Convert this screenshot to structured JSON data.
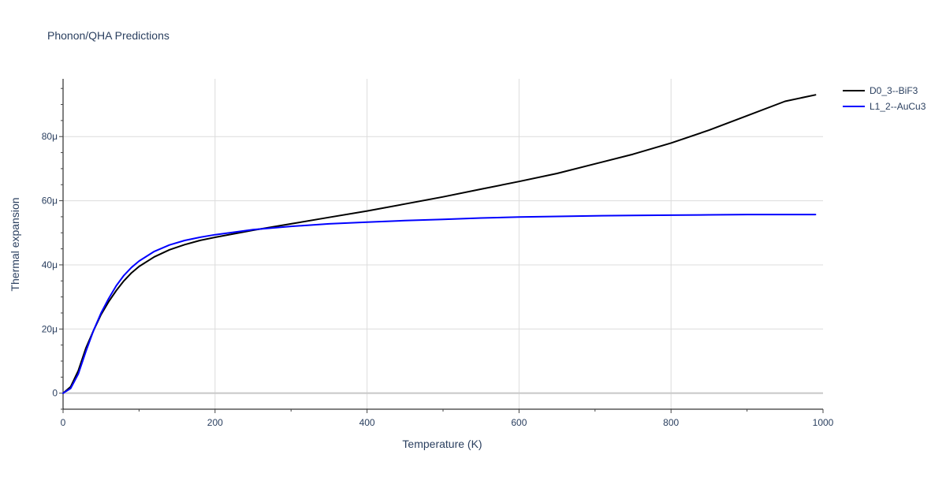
{
  "chart_data": {
    "type": "line",
    "title": "Phonon/QHA Predictions",
    "xlabel": "Temperature (K)",
    "ylabel": "Thermal expansion",
    "xlim": [
      0,
      1000
    ],
    "ylim": [
      -5,
      98
    ],
    "x_ticks": [
      0,
      200,
      400,
      600,
      800,
      1000
    ],
    "x_tick_labels": [
      "0",
      "200",
      "400",
      "600",
      "800",
      "1000"
    ],
    "y_ticks": [
      0,
      20,
      40,
      60,
      80
    ],
    "y_tick_labels": [
      "0",
      "20μ",
      "40μ",
      "60μ",
      "80μ"
    ],
    "grid": true,
    "legend_position": "top-right",
    "series": [
      {
        "name": "D0_3--BiF3",
        "color": "#000000",
        "x": [
          0,
          10,
          20,
          30,
          40,
          50,
          60,
          70,
          80,
          90,
          100,
          120,
          140,
          160,
          180,
          200,
          250,
          300,
          350,
          400,
          450,
          500,
          550,
          600,
          650,
          700,
          750,
          800,
          850,
          900,
          950,
          990
        ],
        "y": [
          0,
          2,
          7,
          14,
          19.5,
          24.5,
          28.5,
          32,
          35,
          37.5,
          39.5,
          42.5,
          44.7,
          46.3,
          47.6,
          48.6,
          50.8,
          52.8,
          54.8,
          56.8,
          59,
          61.2,
          63.6,
          66,
          68.5,
          71.5,
          74.5,
          78,
          82,
          86.5,
          91,
          93
        ]
      },
      {
        "name": "L1_2--AuCu3",
        "color": "#0000ff",
        "x": [
          0,
          10,
          20,
          30,
          40,
          50,
          60,
          70,
          80,
          90,
          100,
          120,
          140,
          160,
          180,
          200,
          250,
          300,
          350,
          400,
          450,
          500,
          550,
          600,
          650,
          700,
          750,
          800,
          850,
          900,
          950,
          990
        ],
        "y": [
          0,
          1.5,
          6,
          13,
          19.5,
          25,
          29.5,
          33.5,
          36.7,
          39.2,
          41.2,
          44.2,
          46.2,
          47.6,
          48.6,
          49.4,
          51,
          52,
          52.8,
          53.3,
          53.8,
          54.2,
          54.6,
          54.9,
          55.1,
          55.3,
          55.4,
          55.5,
          55.6,
          55.7,
          55.7,
          55.7
        ]
      }
    ]
  }
}
